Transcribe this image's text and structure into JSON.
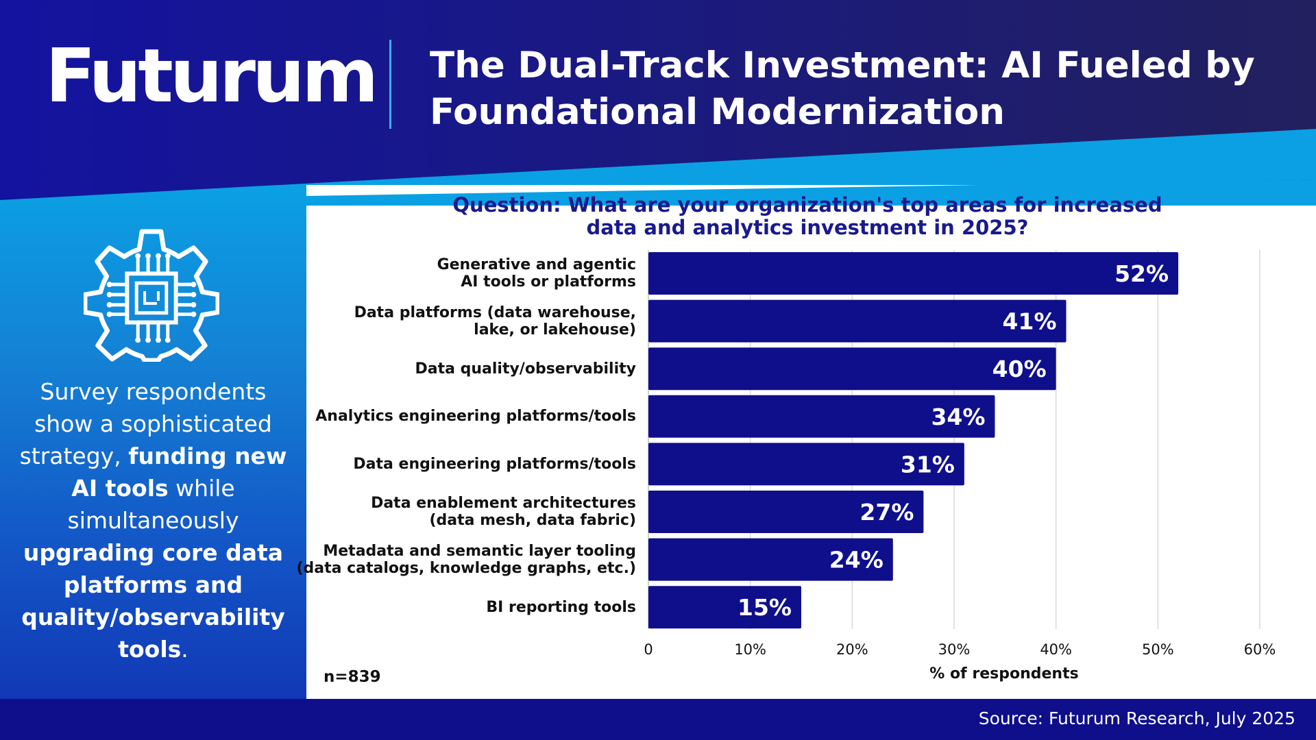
{
  "header": {
    "logo": "Futurum",
    "title_lines": [
      "The Dual-Track Investment: AI Fueled by",
      "Foundational Modernization"
    ]
  },
  "sidebar": {
    "icon": "gear-chip-icon",
    "text_parts": [
      {
        "text": "Survey respondents show a sophisticated strategy, ",
        "bold": false
      },
      {
        "text": "funding new AI tools",
        "bold": true
      },
      {
        "text": " while simultaneously ",
        "bold": false
      },
      {
        "text": "upgrading core data platforms and quality/observability tools",
        "bold": true
      },
      {
        "text": ".",
        "bold": false
      }
    ]
  },
  "chart_data": {
    "type": "bar",
    "orientation": "horizontal",
    "title_lines": [
      "Question: What are your organization's top areas for increased",
      "data and analytics investment in 2025?"
    ],
    "categories": [
      [
        "Generative and agentic",
        "AI tools or platforms"
      ],
      [
        "Data platforms (data warehouse,",
        "lake, or lakehouse)"
      ],
      [
        "Data quality/observability"
      ],
      [
        "Analytics engineering platforms/tools"
      ],
      [
        "Data engineering platforms/tools"
      ],
      [
        "Data enablement architectures",
        "(data mesh, data fabric)"
      ],
      [
        "Metadata and semantic layer tooling",
        "(data catalogs, knowledge graphs, etc.)"
      ],
      [
        "BI reporting tools"
      ]
    ],
    "values": [
      52,
      41,
      40,
      34,
      31,
      27,
      24,
      15
    ],
    "data_labels": [
      "52%",
      "41%",
      "40%",
      "34%",
      "31%",
      "27%",
      "24%",
      "15%"
    ],
    "x_ticks": [
      "0",
      "10%",
      "20%",
      "30%",
      "40%",
      "50%",
      "60%"
    ],
    "xlim": [
      0,
      60
    ],
    "xlabel": "% of respondents",
    "grid": true,
    "bar_color": "#0f0f8c",
    "sample_note": "n=839"
  },
  "footer": {
    "source": "Source: Futurum Research, July 2025"
  },
  "colors": {
    "navy": "#1a1a8c",
    "bar": "#0f0f8c",
    "accent_blue": "#0ba0e4",
    "divider": "#38b3ee"
  }
}
